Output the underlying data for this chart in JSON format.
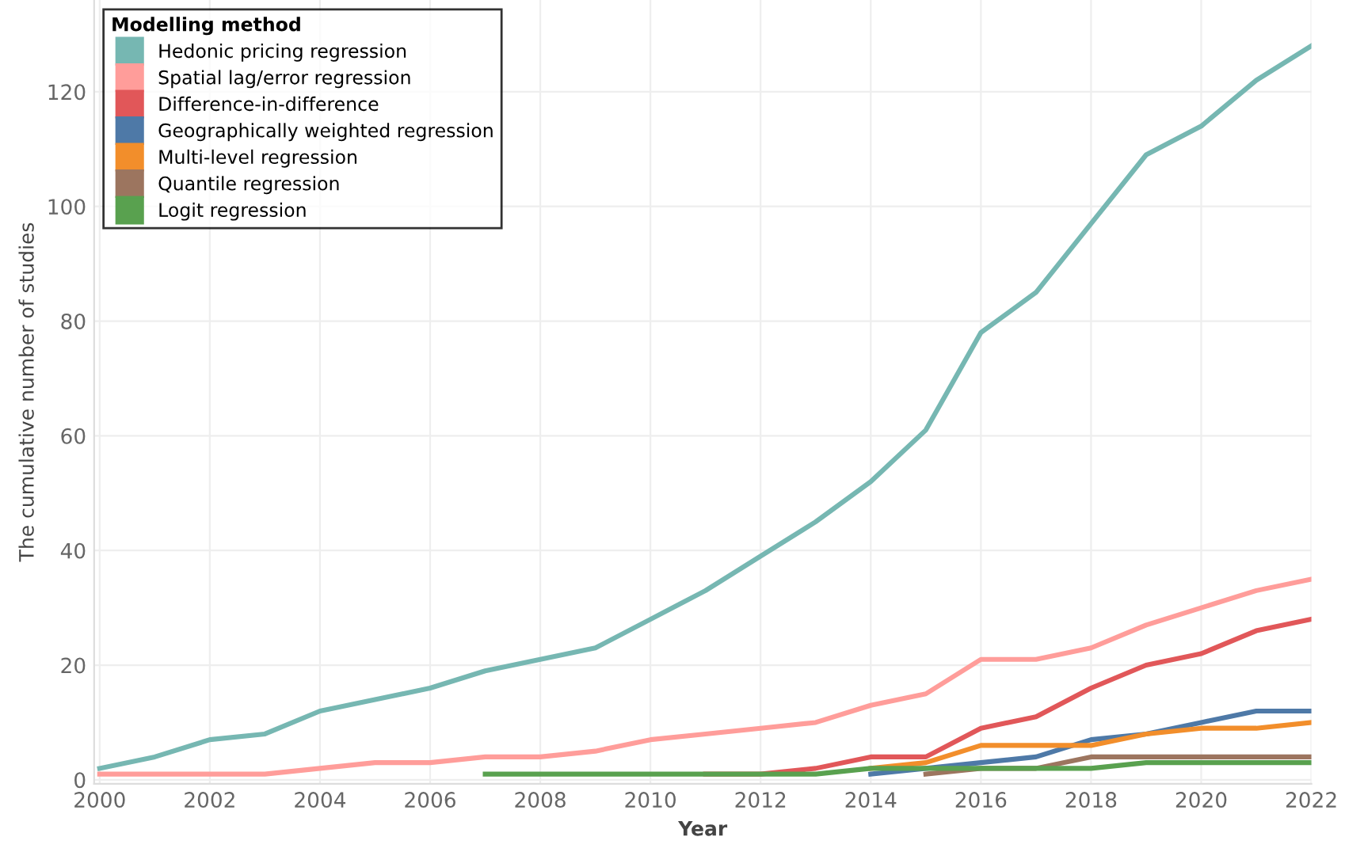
{
  "chart_data": {
    "type": "line",
    "xlabel": "Year",
    "ylabel": "The cumulative number of studies",
    "legend_title": "Modelling method",
    "xlim": [
      1999.9,
      2022
    ],
    "ylim": [
      -0.7,
      136
    ],
    "xticks": [
      2000,
      2002,
      2004,
      2006,
      2008,
      2010,
      2012,
      2014,
      2016,
      2018,
      2020,
      2022
    ],
    "yticks": [
      0,
      20,
      40,
      60,
      80,
      100,
      120
    ],
    "grid": true,
    "legend": "top left",
    "marker": "none",
    "line_style": "solid",
    "series": [
      {
        "name": "Hedonic pricing regression",
        "color": "#76b7b2",
        "x": [
          2000,
          2001,
          2002,
          2003,
          2004,
          2005,
          2006,
          2007,
          2008,
          2009,
          2010,
          2011,
          2012,
          2013,
          2014,
          2015,
          2016,
          2017,
          2018,
          2019,
          2020,
          2021,
          2022
        ],
        "values": [
          2,
          4,
          7,
          8,
          12,
          14,
          16,
          19,
          21,
          23,
          28,
          33,
          39,
          45,
          52,
          61,
          78,
          85,
          97,
          109,
          114,
          122,
          128
        ]
      },
      {
        "name": "Spatial lag/error regression",
        "color": "#ff9d9a",
        "x": [
          2000,
          2001,
          2002,
          2003,
          2004,
          2005,
          2006,
          2007,
          2008,
          2009,
          2010,
          2011,
          2012,
          2013,
          2014,
          2015,
          2016,
          2017,
          2018,
          2019,
          2020,
          2021,
          2022
        ],
        "values": [
          1,
          1,
          1,
          1,
          2,
          3,
          3,
          4,
          4,
          5,
          7,
          8,
          9,
          10,
          13,
          15,
          21,
          21,
          23,
          27,
          30,
          33,
          35
        ]
      },
      {
        "name": "Difference-in-difference",
        "color": "#e15759",
        "x": [
          2011,
          2012,
          2013,
          2014,
          2015,
          2016,
          2017,
          2018,
          2019,
          2020,
          2021,
          2022
        ],
        "values": [
          1,
          1,
          2,
          4,
          4,
          9,
          11,
          16,
          20,
          22,
          26,
          28
        ]
      },
      {
        "name": "Geographically weighted regression",
        "color": "#4e79a7",
        "x": [
          2014,
          2015,
          2016,
          2017,
          2018,
          2019,
          2020,
          2021,
          2022
        ],
        "values": [
          1,
          2,
          3,
          4,
          7,
          8,
          10,
          12,
          12
        ]
      },
      {
        "name": "Multi-level regression",
        "color": "#f28e2b",
        "x": [
          2014,
          2015,
          2016,
          2017,
          2018,
          2019,
          2020,
          2021,
          2022
        ],
        "values": [
          2,
          3,
          6,
          6,
          6,
          8,
          9,
          9,
          10
        ]
      },
      {
        "name": "Quantile regression",
        "color": "#9c755f",
        "x": [
          2015,
          2016,
          2017,
          2018,
          2019,
          2020,
          2021,
          2022
        ],
        "values": [
          1,
          2,
          2,
          4,
          4,
          4,
          4,
          4
        ]
      },
      {
        "name": "Logit regression",
        "color": "#59a14f",
        "x": [
          2007,
          2008,
          2009,
          2010,
          2011,
          2012,
          2013,
          2014,
          2015,
          2016,
          2017,
          2018,
          2019,
          2020,
          2021,
          2022
        ],
        "values": [
          1,
          1,
          1,
          1,
          1,
          1,
          1,
          2,
          2,
          2,
          2,
          2,
          3,
          3,
          3,
          3
        ]
      }
    ]
  }
}
